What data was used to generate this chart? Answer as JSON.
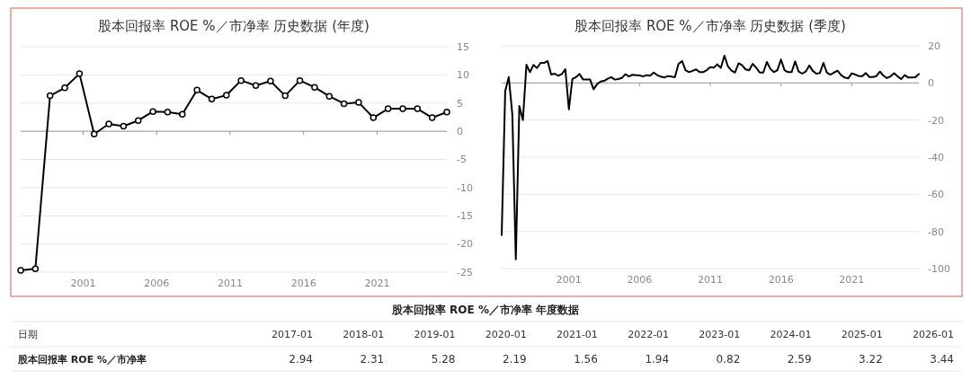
{
  "chart_data": [
    {
      "type": "line",
      "title": "股本回报率 ROE %／市净率 历史数据 (年度)",
      "x": [
        "1996-10",
        "1997-10",
        "1998-10",
        "1999-10",
        "2000-10",
        "2001-10",
        "2002-10",
        "2003-10",
        "2004-10",
        "2005-10",
        "2006-10",
        "2007-10",
        "2008-10",
        "2009-10",
        "2010-10",
        "2011-10",
        "2012-10",
        "2013-10",
        "2014-10",
        "2015-10",
        "2016-10",
        "2017-10",
        "2018-10",
        "2019-10",
        "2020-10",
        "2021-10",
        "2022-10",
        "2023-10",
        "2024-10",
        "2025-10"
      ],
      "series": [
        {
          "color": "#000000",
          "values": [
            -24.7,
            -24.4,
            6.3,
            7.7,
            10.2,
            -0.5,
            1.3,
            0.9,
            1.9,
            3.5,
            3.4,
            3.0,
            7.3,
            5.7,
            6.4,
            9.0,
            8.1,
            8.9,
            6.3,
            9.0,
            7.8,
            6.2,
            4.9,
            5.1,
            2.4,
            4.0,
            4.0,
            4.0,
            2.4,
            3.4
          ]
        }
      ],
      "xlim": [
        "1996-10",
        "2025-10"
      ],
      "xticks": [
        "2001",
        "2006",
        "2011",
        "2016",
        "2021"
      ],
      "ylim": [
        -25,
        15
      ],
      "yticks": [
        -25,
        -20,
        -15,
        -10,
        -5,
        0,
        5,
        10,
        15
      ],
      "grid": "y",
      "marker": "circle"
    },
    {
      "type": "line",
      "title": "股本回报率 ROE %／市净率 历史数据 (季度)",
      "x": [
        "1996-04",
        "1996-07",
        "1996-10",
        "1997-01",
        "1997-04",
        "1997-07",
        "1997-10",
        "1998-01",
        "1998-04",
        "1998-07",
        "1998-10",
        "1999-01",
        "1999-04",
        "1999-07",
        "1999-10",
        "2000-01",
        "2000-04",
        "2000-07",
        "2000-10",
        "2001-01",
        "2001-04",
        "2001-07",
        "2001-10",
        "2002-01",
        "2002-04",
        "2002-07",
        "2002-10",
        "2003-01",
        "2003-04",
        "2003-07",
        "2003-10",
        "2004-01",
        "2004-04",
        "2004-07",
        "2004-10",
        "2005-01",
        "2005-04",
        "2005-07",
        "2005-10",
        "2006-01",
        "2006-04",
        "2006-07",
        "2006-10",
        "2007-01",
        "2007-04",
        "2007-07",
        "2007-10",
        "2008-01",
        "2008-04",
        "2008-07",
        "2008-10",
        "2009-01",
        "2009-04",
        "2009-07",
        "2009-10",
        "2010-01",
        "2010-04",
        "2010-07",
        "2010-10",
        "2011-01",
        "2011-04",
        "2011-07",
        "2011-10",
        "2012-01",
        "2012-04",
        "2012-07",
        "2012-10",
        "2013-01",
        "2013-04",
        "2013-07",
        "2013-10",
        "2014-01",
        "2014-04",
        "2014-07",
        "2014-10",
        "2015-01",
        "2015-04",
        "2015-07",
        "2015-10",
        "2016-01",
        "2016-04",
        "2016-07",
        "2016-10",
        "2017-01",
        "2017-04",
        "2017-07",
        "2017-10",
        "2018-01",
        "2018-04",
        "2018-07",
        "2018-10",
        "2019-01",
        "2019-04",
        "2019-07",
        "2019-10",
        "2020-01",
        "2020-04",
        "2020-07",
        "2020-10",
        "2021-01",
        "2021-04",
        "2021-07",
        "2021-10",
        "2022-01",
        "2022-04",
        "2022-07",
        "2022-10",
        "2023-01",
        "2023-04",
        "2023-07",
        "2023-10",
        "2024-01",
        "2024-04",
        "2024-07",
        "2024-10",
        "2025-01",
        "2025-04",
        "2025-07",
        "2025-10"
      ],
      "series": [
        {
          "color": "#000000",
          "values": [
            -82,
            -4.4,
            3.2,
            -17,
            -95,
            -12.4,
            -20,
            9.8,
            5.8,
            9.7,
            8,
            10.8,
            10.8,
            11.8,
            4.5,
            5,
            3.9,
            4.7,
            7.4,
            -14.2,
            2.1,
            3.1,
            4.8,
            1.9,
            1.9,
            1.9,
            -3.4,
            -0.6,
            0.8,
            1.1,
            2.3,
            3.1,
            1.8,
            2.1,
            2.7,
            4.7,
            3.5,
            4.4,
            4.2,
            4.0,
            3.5,
            4.2,
            3.9,
            5.6,
            4.2,
            3.4,
            2.9,
            3.7,
            3.4,
            3.1,
            10.2,
            11.8,
            6.9,
            5.8,
            6.5,
            7.3,
            5.8,
            5.8,
            6.9,
            8.5,
            8.2,
            10,
            8.1,
            14.7,
            8.9,
            6.6,
            5.6,
            10.6,
            9.5,
            7.3,
            6.8,
            10.3,
            8.2,
            5.6,
            5.6,
            11.3,
            7.6,
            5.8,
            6.9,
            12.6,
            6.9,
            5.8,
            5.8,
            11.6,
            6.1,
            5,
            6.1,
            9.4,
            6.5,
            5,
            5.3,
            10.8,
            5.5,
            4.5,
            5.6,
            6.6,
            4.2,
            2.9,
            2.4,
            5.2,
            4.5,
            3.7,
            3.7,
            5.3,
            3.2,
            3.2,
            3.7,
            6.1,
            3.9,
            2.6,
            3.5,
            5.2,
            3.5,
            2.1,
            4.2,
            2.9,
            2.9,
            3.1,
            4.8
          ]
        }
      ],
      "xlim": [
        "1996-04",
        "2025-10"
      ],
      "xticks": [
        "2001",
        "2006",
        "2011",
        "2016",
        "2021"
      ],
      "ylim": [
        -100,
        20
      ],
      "yticks": [
        -100,
        -80,
        -60,
        -40,
        -20,
        0,
        20
      ],
      "grid": "y"
    },
    {
      "type": "other",
      "title": "股本回报率 ROE %／市净率 年度数据",
      "xlabel": "日期",
      "categories": [
        "2017-01",
        "2018-01",
        "2019-01",
        "2020-01",
        "2021-01",
        "2022-01",
        "2023-01",
        "2024-01",
        "2025-01",
        "2026-01"
      ],
      "series": [
        {
          "name": "股本回报率 ROE %／市净率",
          "values": [
            2.94,
            2.31,
            5.28,
            2.19,
            1.56,
            1.94,
            0.82,
            2.59,
            3.22,
            3.44
          ]
        }
      ],
      "data_labels": true
    }
  ]
}
